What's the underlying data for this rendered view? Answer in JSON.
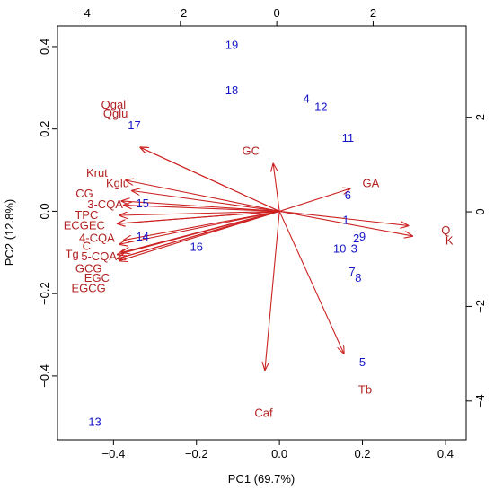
{
  "chart_data": {
    "type": "biplot",
    "xlabel": "PC1 (69.7%)",
    "ylabel": "PC2 (12.8%)",
    "bottom_axis": {
      "lim": [
        -0.535,
        0.45
      ],
      "ticks": [
        -0.4,
        -0.2,
        0.0,
        0.2,
        0.4
      ],
      "tick_labels": [
        "−0.4",
        "−0.2",
        "0.0",
        "0.2",
        "0.4"
      ]
    },
    "left_axis": {
      "lim": [
        -0.555,
        0.45
      ],
      "ticks": [
        -0.4,
        -0.2,
        0.0,
        0.2,
        0.4
      ],
      "tick_labels": [
        "−0.4",
        "−0.2",
        "0.0",
        "0.2",
        "0.4"
      ]
    },
    "top_axis": {
      "lim": [
        -4.55,
        3.93
      ],
      "ticks": [
        -4,
        -2,
        0,
        2
      ],
      "tick_labels": [
        "−4",
        "−2",
        "0",
        "2"
      ]
    },
    "right_axis": {
      "lim": [
        -4.82,
        3.93
      ],
      "ticks": [
        -4,
        -2,
        0,
        2
      ],
      "tick_labels": [
        "−4",
        "−2",
        "0",
        "2"
      ]
    },
    "observations": [
      {
        "label": "19",
        "x": -0.115,
        "y": 0.405
      },
      {
        "label": "18",
        "x": -0.115,
        "y": 0.295
      },
      {
        "label": "4",
        "x": 0.065,
        "y": 0.275
      },
      {
        "label": "12",
        "x": 0.1,
        "y": 0.255
      },
      {
        "label": "11",
        "x": 0.165,
        "y": 0.18
      },
      {
        "label": "17",
        "x": -0.35,
        "y": 0.21
      },
      {
        "label": "6",
        "x": 0.165,
        "y": 0.04
      },
      {
        "label": "1",
        "x": 0.16,
        "y": -0.02
      },
      {
        "label": "15",
        "x": -0.33,
        "y": 0.02
      },
      {
        "label": "14",
        "x": -0.33,
        "y": -0.06
      },
      {
        "label": "16",
        "x": -0.2,
        "y": -0.085
      },
      {
        "label": "2",
        "x": 0.185,
        "y": -0.065
      },
      {
        "label": "9",
        "x": 0.2,
        "y": -0.06
      },
      {
        "label": "10",
        "x": 0.145,
        "y": -0.09
      },
      {
        "label": "3",
        "x": 0.18,
        "y": -0.09
      },
      {
        "label": "7",
        "x": 0.175,
        "y": -0.145
      },
      {
        "label": "8",
        "x": 0.19,
        "y": -0.16
      },
      {
        "label": "5",
        "x": 0.2,
        "y": -0.365
      },
      {
        "label": "13",
        "x": -0.445,
        "y": -0.51
      }
    ],
    "loadings": [
      {
        "label": "Qgal",
        "x": -0.335,
        "y": 0.155,
        "lx": -0.4,
        "ly": 0.26,
        "anchor": "middle"
      },
      {
        "label": "Qglu",
        "x": -0.335,
        "y": 0.155,
        "lx": -0.395,
        "ly": 0.238,
        "anchor": "middle"
      },
      {
        "label": "GC",
        "x": -0.015,
        "y": 0.115,
        "lx": -0.09,
        "ly": 0.148,
        "anchor": "start"
      },
      {
        "label": "GA",
        "x": 0.17,
        "y": 0.055,
        "lx": 0.2,
        "ly": 0.07,
        "anchor": "start"
      },
      {
        "label": "Krut",
        "x": -0.37,
        "y": 0.075,
        "lx": -0.44,
        "ly": 0.095,
        "anchor": "middle"
      },
      {
        "label": "Kglu",
        "x": -0.355,
        "y": 0.05,
        "lx": -0.39,
        "ly": 0.07,
        "anchor": "middle"
      },
      {
        "label": "CG",
        "x": -0.38,
        "y": 0.025,
        "lx": -0.47,
        "ly": 0.045,
        "anchor": "middle"
      },
      {
        "label": "3-CQA",
        "x": -0.375,
        "y": 0.015,
        "lx": -0.42,
        "ly": 0.018,
        "anchor": "middle"
      },
      {
        "label": "TPC",
        "x": -0.385,
        "y": -0.01,
        "lx": -0.465,
        "ly": -0.008,
        "anchor": "middle"
      },
      {
        "label": "ECG",
        "x": -0.39,
        "y": -0.03,
        "lx": -0.49,
        "ly": -0.033,
        "anchor": "middle"
      },
      {
        "label": "EC",
        "x": -0.39,
        "y": -0.03,
        "lx": -0.44,
        "ly": -0.033,
        "anchor": "middle"
      },
      {
        "label": "4-CQA",
        "x": -0.375,
        "y": -0.07,
        "lx": -0.44,
        "ly": -0.063,
        "anchor": "middle"
      },
      {
        "label": "C",
        "x": -0.385,
        "y": -0.08,
        "lx": -0.465,
        "ly": -0.083,
        "anchor": "middle"
      },
      {
        "label": "Tg",
        "x": -0.39,
        "y": -0.105,
        "lx": -0.5,
        "ly": -0.103,
        "anchor": "middle"
      },
      {
        "label": "5-CQA",
        "x": -0.38,
        "y": -0.1,
        "lx": -0.435,
        "ly": -0.108,
        "anchor": "middle"
      },
      {
        "label": "GCG",
        "x": -0.39,
        "y": -0.115,
        "lx": -0.46,
        "ly": -0.138,
        "anchor": "middle"
      },
      {
        "label": "EGC",
        "x": -0.385,
        "y": -0.12,
        "lx": -0.44,
        "ly": -0.16,
        "anchor": "middle"
      },
      {
        "label": "EGCG",
        "x": -0.39,
        "y": -0.115,
        "lx": -0.46,
        "ly": -0.185,
        "anchor": "middle"
      },
      {
        "label": "Q",
        "x": 0.31,
        "y": -0.035,
        "lx": 0.39,
        "ly": -0.045,
        "anchor": "start"
      },
      {
        "label": "K",
        "x": 0.32,
        "y": -0.06,
        "lx": 0.4,
        "ly": -0.07,
        "anchor": "start"
      },
      {
        "label": "Caf",
        "x": -0.035,
        "y": -0.385,
        "lx": -0.06,
        "ly": -0.488,
        "anchor": "start"
      },
      {
        "label": "Tb",
        "x": 0.155,
        "y": -0.345,
        "lx": 0.19,
        "ly": -0.432,
        "anchor": "start"
      }
    ],
    "colors": {
      "observations": "#1515c8",
      "loadings": "#cc2222",
      "loading_labels": "#b22222"
    },
    "grid": false,
    "legend": "none"
  }
}
